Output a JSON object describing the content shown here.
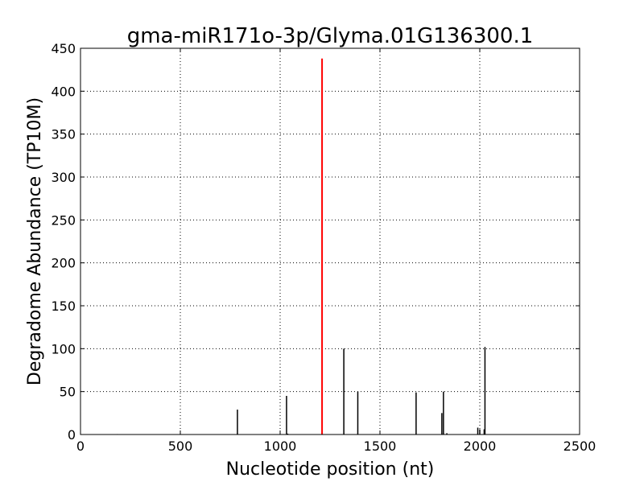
{
  "chart_data": {
    "type": "bar",
    "title": "gma-miR171o-3p/Glyma.01G136300.1",
    "xlabel": "Nucleotide position (nt)",
    "ylabel": "Degradome Abundance (TP10M)",
    "xlim": [
      0,
      2500
    ],
    "ylim": [
      0,
      450
    ],
    "xticks": [
      0,
      500,
      1000,
      1500,
      2000,
      2500
    ],
    "yticks": [
      0,
      50,
      100,
      150,
      200,
      250,
      300,
      350,
      400,
      450
    ],
    "grid": true,
    "series": [
      {
        "color": "#000000",
        "points": [
          {
            "x": 185,
            "y": 0.5
          },
          {
            "x": 786,
            "y": 29
          },
          {
            "x": 1032,
            "y": 45
          },
          {
            "x": 1038,
            "y": 1
          },
          {
            "x": 1319,
            "y": 100
          },
          {
            "x": 1389,
            "y": 50
          },
          {
            "x": 1548,
            "y": 0.5
          },
          {
            "x": 1681,
            "y": 49
          },
          {
            "x": 1810,
            "y": 25
          },
          {
            "x": 1818,
            "y": 50
          },
          {
            "x": 1835,
            "y": 1.5
          },
          {
            "x": 1990,
            "y": 8
          },
          {
            "x": 2000,
            "y": 6
          },
          {
            "x": 2022,
            "y": 6
          },
          {
            "x": 2026,
            "y": 102
          }
        ]
      },
      {
        "color": "#ff0000",
        "points": [
          {
            "x": 1210,
            "y": 438
          }
        ]
      }
    ]
  }
}
